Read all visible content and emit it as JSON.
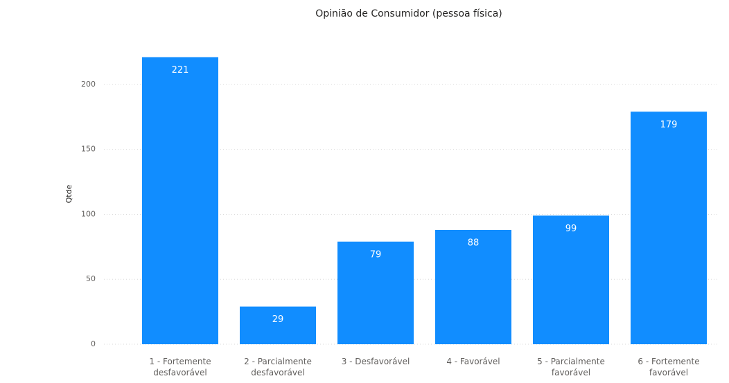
{
  "chart_data": {
    "type": "bar",
    "title": "Opinião de Consumidor (pessoa física)",
    "y_label": "Qtde",
    "categories": [
      "1 - Fortemente desfavorável",
      "2 - Parcialmente desfavorável",
      "3 - Desfavorável",
      "4 - Favorável",
      "5 - Parcialmente favorável",
      "6 - Fortemente favorável"
    ],
    "values": [
      221,
      29,
      79,
      88,
      99,
      179
    ],
    "color": "#118DFF",
    "ylim": [
      0,
      225
    ],
    "yticks": [
      0,
      50,
      100,
      150,
      200
    ],
    "grid": true
  }
}
